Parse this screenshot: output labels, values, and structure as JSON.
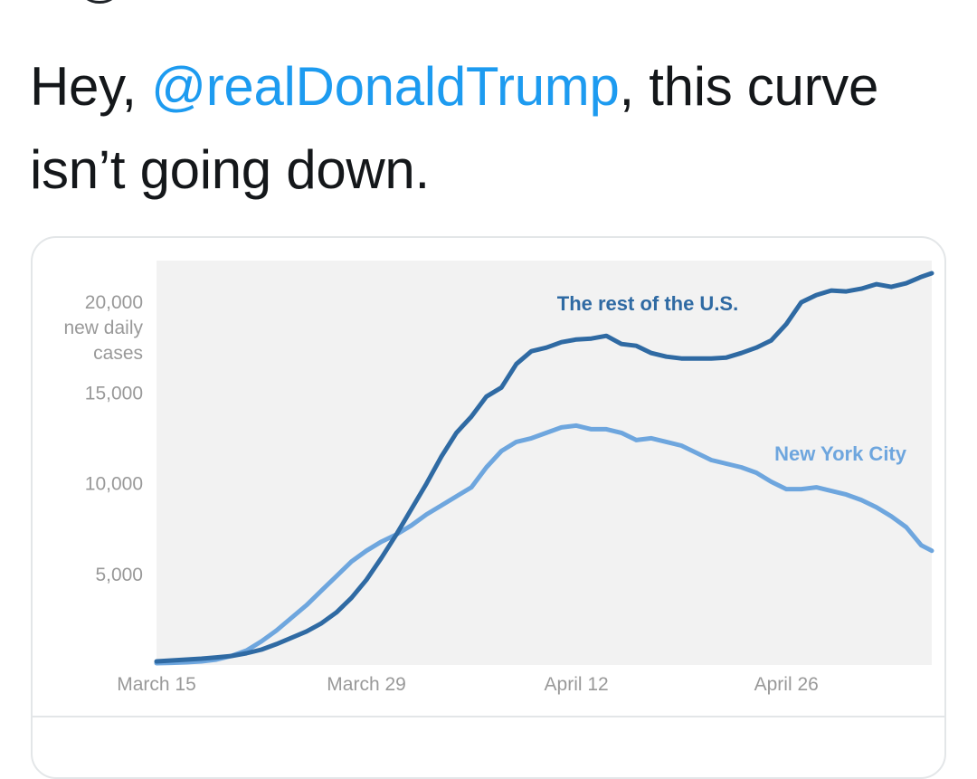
{
  "tweet": {
    "text_before": "Hey, ",
    "mention": "@realDonaldTrump",
    "text_after": ", this curve isn’t going down."
  },
  "colors": {
    "mention": "#1d9bf0",
    "text": "#14171a",
    "rest_of_us": "#2f6aa3",
    "nyc": "#6ea6de",
    "plot_bg": "#f2f2f2"
  },
  "chart_data": {
    "type": "line",
    "ylabel_lines": [
      "new daily",
      "cases"
    ],
    "yticks": [
      {
        "value": 20000,
        "label": "20,000"
      },
      {
        "value": 15000,
        "label": "15,000"
      },
      {
        "value": 10000,
        "label": "10,000"
      },
      {
        "value": 5000,
        "label": "5,000"
      }
    ],
    "xticks": [
      {
        "value": 0,
        "label": "March 15"
      },
      {
        "value": 14,
        "label": "March 29"
      },
      {
        "value": 28,
        "label": "April 12"
      },
      {
        "value": 42,
        "label": "April 26"
      }
    ],
    "xlim": [
      0,
      51.7
    ],
    "ylim": [
      0,
      22300
    ],
    "series": [
      {
        "name": "The rest of the U.S.",
        "x": [
          0,
          1,
          2,
          3,
          4,
          5,
          6,
          7,
          8,
          9,
          10,
          11,
          12,
          13,
          14,
          15,
          16,
          17,
          18,
          19,
          20,
          21,
          22,
          23,
          24,
          25,
          26,
          27,
          28,
          29,
          30,
          31,
          32,
          33,
          34,
          35,
          36,
          37,
          38,
          39,
          40,
          41,
          42,
          43,
          44,
          45,
          46,
          47,
          48,
          49,
          50,
          51,
          51.7
        ],
        "y": [
          200,
          250,
          300,
          350,
          420,
          500,
          650,
          850,
          1150,
          1500,
          1850,
          2300,
          2900,
          3700,
          4700,
          5900,
          7200,
          8600,
          10000,
          11500,
          12800,
          13700,
          14800,
          15300,
          16600,
          17300,
          17500,
          17800,
          17950,
          18000,
          18150,
          17700,
          17600,
          17200,
          17000,
          16900,
          16900,
          16900,
          16950,
          17200,
          17500,
          17900,
          18800,
          20000,
          20400,
          20650,
          20600,
          20750,
          21000,
          20850,
          21050,
          21400,
          21600
        ]
      },
      {
        "name": "New York City",
        "x": [
          0,
          1,
          2,
          3,
          4,
          5,
          6,
          7,
          8,
          9,
          10,
          11,
          12,
          13,
          14,
          15,
          16,
          17,
          18,
          19,
          20,
          21,
          22,
          23,
          24,
          25,
          26,
          27,
          28,
          29,
          30,
          31,
          32,
          33,
          34,
          35,
          36,
          37,
          38,
          39,
          40,
          41,
          42,
          43,
          44,
          45,
          46,
          47,
          48,
          49,
          50,
          51,
          51.7
        ],
        "y": [
          100,
          120,
          150,
          200,
          300,
          500,
          800,
          1300,
          1900,
          2600,
          3300,
          4100,
          4900,
          5700,
          6300,
          6800,
          7200,
          7700,
          8300,
          8800,
          9300,
          9800,
          10900,
          11800,
          12300,
          12500,
          12800,
          13100,
          13200,
          13000,
          13000,
          12800,
          12400,
          12500,
          12300,
          12100,
          11700,
          11300,
          11100,
          10900,
          10600,
          10100,
          9700,
          9700,
          9800,
          9600,
          9400,
          9100,
          8700,
          8200,
          7600,
          6600,
          6300
        ]
      }
    ],
    "annotations": [
      {
        "text": "The rest of the U.S.",
        "series": 0
      },
      {
        "text": "New York City",
        "series": 1
      }
    ]
  }
}
